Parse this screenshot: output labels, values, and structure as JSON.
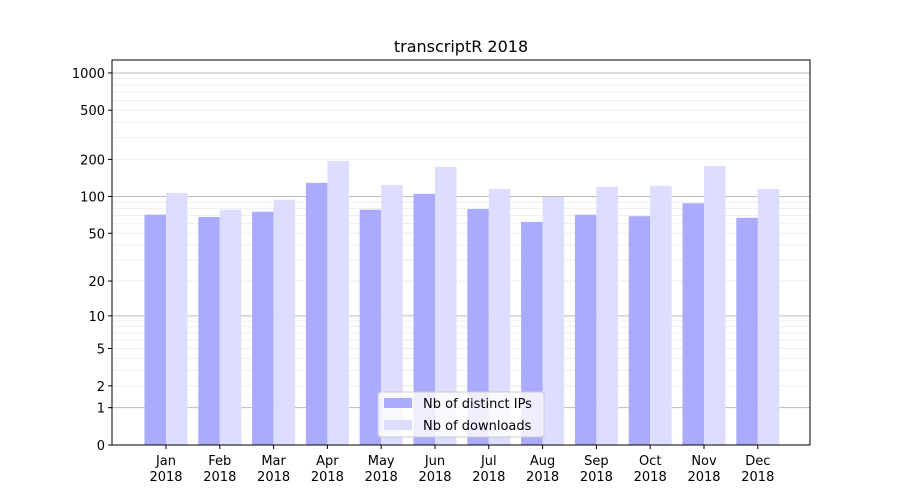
{
  "chart_data": {
    "type": "bar",
    "title": "transcriptR 2018",
    "xlabel": "",
    "ylabel": "",
    "yscale": "log(1+y)",
    "ylim": [
      0,
      1270
    ],
    "yticks": [
      0,
      1,
      2,
      5,
      10,
      20,
      50,
      100,
      200,
      500,
      1000
    ],
    "grid": true,
    "legend_position": "bottom-center",
    "categories": [
      "Jan\n2018",
      "Feb\n2018",
      "Mar\n2018",
      "Apr\n2018",
      "May\n2018",
      "Jun\n2018",
      "Jul\n2018",
      "Aug\n2018",
      "Sep\n2018",
      "Oct\n2018",
      "Nov\n2018",
      "Dec\n2018"
    ],
    "series": [
      {
        "name": "Nb of distinct IPs",
        "color": "#aaaaff",
        "values": [
          71,
          68,
          75,
          129,
          78,
          105,
          79,
          62,
          71,
          69,
          88,
          67
        ]
      },
      {
        "name": "Nb of downloads",
        "color": "#ddddff",
        "values": [
          107,
          78,
          94,
          194,
          124,
          174,
          115,
          99,
          120,
          122,
          177,
          115
        ]
      }
    ]
  }
}
